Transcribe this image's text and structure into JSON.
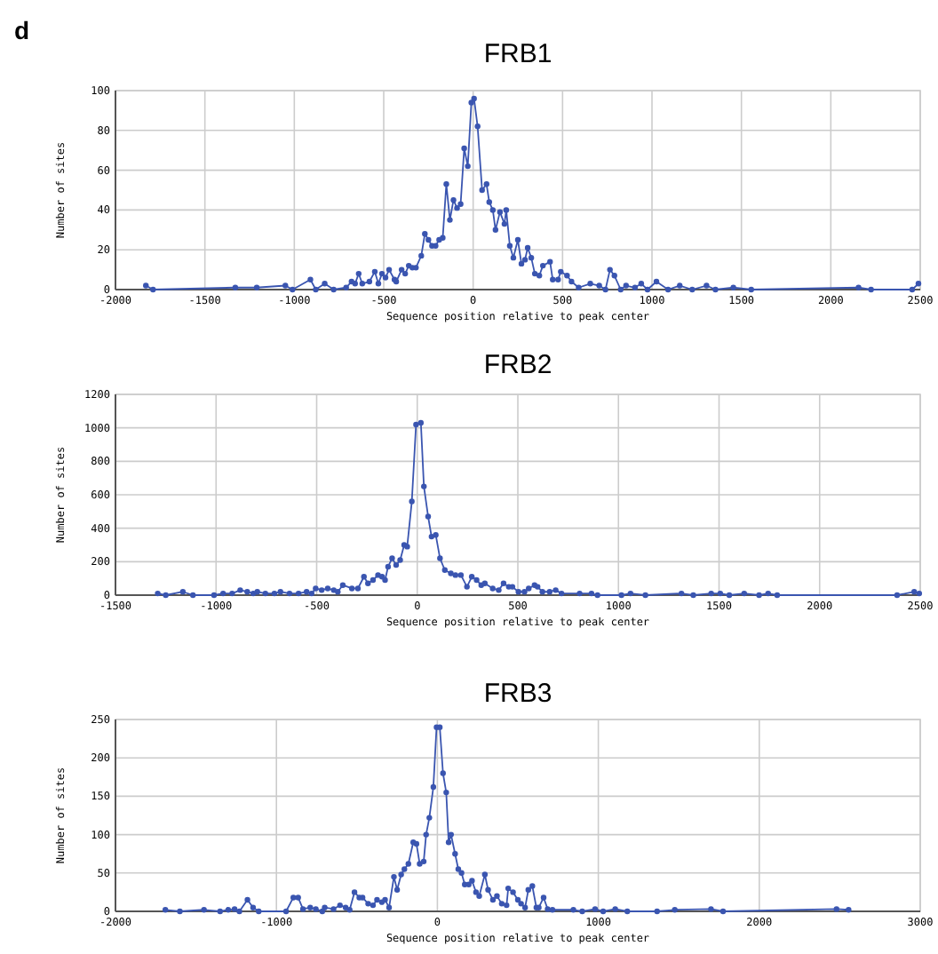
{
  "chart_data": [
    {
      "type": "line",
      "title": "FRB1",
      "xlabel": "Sequence position relative to peak center",
      "ylabel": "Number of sites",
      "color": "#3a55b0",
      "marker": "circle",
      "grid": true,
      "annotations": [
        "d"
      ],
      "xlim": [
        -2000,
        2500
      ],
      "xticks": [
        -2000,
        -1500,
        -1000,
        -500,
        0,
        500,
        1000,
        1500,
        2000,
        2500
      ],
      "ylim": [
        0,
        100
      ],
      "yticks": [
        0,
        20,
        40,
        60,
        80,
        100
      ],
      "x": [
        -1830,
        -1790,
        -1330,
        -1210,
        -1050,
        -1010,
        -910,
        -880,
        -830,
        -780,
        -710,
        -680,
        -660,
        -640,
        -620,
        -580,
        -550,
        -530,
        -510,
        -490,
        -470,
        -440,
        -430,
        -400,
        -380,
        -360,
        -340,
        -320,
        -290,
        -270,
        -250,
        -230,
        -210,
        -190,
        -170,
        -150,
        -130,
        -110,
        -90,
        -70,
        -50,
        -30,
        -10,
        5,
        25,
        50,
        75,
        90,
        110,
        125,
        150,
        175,
        185,
        205,
        225,
        250,
        270,
        290,
        305,
        325,
        345,
        370,
        390,
        430,
        445,
        475,
        490,
        525,
        550,
        590,
        655,
        705,
        740,
        765,
        790,
        825,
        855,
        905,
        940,
        975,
        1025,
        1090,
        1155,
        1225,
        1305,
        1355,
        1455,
        1555,
        2155,
        2225,
        2455,
        2490
      ],
      "values": [
        2,
        0,
        1,
        1,
        2,
        0,
        5,
        0,
        3,
        0,
        1,
        4,
        3,
        8,
        3,
        4,
        9,
        3,
        8,
        6,
        10,
        5,
        4,
        10,
        8,
        12,
        11,
        11,
        17,
        28,
        25,
        22,
        22,
        25,
        26,
        53,
        35,
        45,
        41,
        43,
        71,
        62,
        94,
        96,
        82,
        50,
        53,
        44,
        40,
        30,
        39,
        33,
        40,
        22,
        16,
        25,
        13,
        15,
        21,
        16,
        8,
        7,
        12,
        14,
        5,
        5,
        9,
        7,
        4,
        1,
        3,
        2,
        0,
        10,
        7,
        0,
        2,
        1,
        3,
        0,
        4,
        0,
        2,
        0,
        2,
        0,
        1,
        0,
        1,
        0,
        0,
        3
      ]
    },
    {
      "type": "line",
      "title": "FRB2",
      "xlabel": "Sequence position relative to peak center",
      "ylabel": "Number of sites",
      "color": "#3a55b0",
      "marker": "circle",
      "grid": true,
      "xlim": [
        -1500,
        2500
      ],
      "xticks": [
        -1500,
        -1000,
        -500,
        0,
        500,
        1000,
        1500,
        2000,
        2500
      ],
      "ylim": [
        0,
        1200
      ],
      "yticks": [
        0,
        200,
        400,
        600,
        800,
        1000,
        1200
      ],
      "x": [
        -1290,
        -1250,
        -1165,
        -1115,
        -1010,
        -965,
        -920,
        -880,
        -845,
        -815,
        -795,
        -755,
        -710,
        -680,
        -635,
        -590,
        -550,
        -525,
        -505,
        -475,
        -445,
        -415,
        -395,
        -370,
        -325,
        -295,
        -265,
        -245,
        -220,
        -195,
        -175,
        -160,
        -145,
        -125,
        -105,
        -85,
        -65,
        -50,
        -27,
        -6,
        18,
        33,
        54,
        71,
        92,
        113,
        137,
        167,
        190,
        217,
        247,
        271,
        295,
        318,
        336,
        375,
        405,
        429,
        455,
        473,
        503,
        533,
        554,
        583,
        598,
        622,
        658,
        688,
        717,
        807,
        866,
        896,
        1015,
        1060,
        1134,
        1313,
        1372,
        1461,
        1506,
        1551,
        1625,
        1699,
        1744,
        1789,
        2385,
        2470,
        2495
      ],
      "values": [
        10,
        0,
        20,
        0,
        0,
        10,
        10,
        30,
        20,
        10,
        20,
        10,
        10,
        20,
        10,
        10,
        20,
        10,
        40,
        30,
        40,
        30,
        20,
        60,
        40,
        40,
        110,
        70,
        90,
        120,
        110,
        90,
        170,
        220,
        180,
        210,
        300,
        290,
        560,
        1020,
        1030,
        650,
        470,
        350,
        360,
        220,
        150,
        130,
        120,
        120,
        50,
        110,
        90,
        60,
        70,
        40,
        30,
        70,
        50,
        50,
        20,
        20,
        40,
        60,
        50,
        20,
        20,
        30,
        10,
        10,
        10,
        0,
        0,
        10,
        0,
        10,
        0,
        10,
        10,
        0,
        10,
        0,
        10,
        0,
        0,
        20,
        10
      ]
    },
    {
      "type": "line",
      "title": "FRB3",
      "xlabel": "Sequence position relative to peak center",
      "ylabel": "Number of sites",
      "color": "#3a55b0",
      "marker": "circle",
      "grid": true,
      "xlim": [
        -2000,
        3000
      ],
      "xticks": [
        -2000,
        -1000,
        0,
        1000,
        2000,
        3000
      ],
      "ylim": [
        0,
        250
      ],
      "yticks": [
        0,
        50,
        100,
        150,
        200,
        250
      ],
      "x": [
        -1690,
        -1600,
        -1450,
        -1350,
        -1300,
        -1260,
        -1230,
        -1180,
        -1145,
        -1110,
        -940,
        -895,
        -865,
        -835,
        -790,
        -755,
        -715,
        -700,
        -645,
        -605,
        -570,
        -545,
        -515,
        -485,
        -465,
        -430,
        -400,
        -375,
        -345,
        -325,
        -300,
        -270,
        -250,
        -225,
        -205,
        -180,
        -150,
        -130,
        -110,
        -85,
        -70,
        -50,
        -25,
        -5,
        15,
        35,
        55,
        70,
        85,
        110,
        130,
        150,
        170,
        195,
        215,
        240,
        260,
        295,
        315,
        345,
        370,
        400,
        430,
        440,
        470,
        500,
        520,
        545,
        565,
        590,
        615,
        630,
        660,
        685,
        715,
        845,
        900,
        980,
        1030,
        1105,
        1180,
        1365,
        1475,
        1700,
        1775,
        2480,
        2555
      ],
      "values": [
        2,
        0,
        2,
        0,
        2,
        3,
        0,
        15,
        5,
        0,
        0,
        18,
        18,
        3,
        5,
        3,
        0,
        5,
        3,
        8,
        5,
        2,
        25,
        18,
        18,
        10,
        8,
        15,
        12,
        15,
        5,
        45,
        28,
        48,
        55,
        62,
        90,
        88,
        62,
        65,
        100,
        122,
        162,
        240,
        240,
        180,
        155,
        90,
        100,
        75,
        55,
        50,
        35,
        35,
        40,
        25,
        20,
        48,
        28,
        15,
        20,
        10,
        8,
        30,
        25,
        15,
        10,
        5,
        28,
        33,
        5,
        5,
        18,
        3,
        2,
        2,
        0,
        3,
        0,
        3,
        0,
        0,
        2,
        3,
        0,
        3,
        2
      ]
    }
  ]
}
